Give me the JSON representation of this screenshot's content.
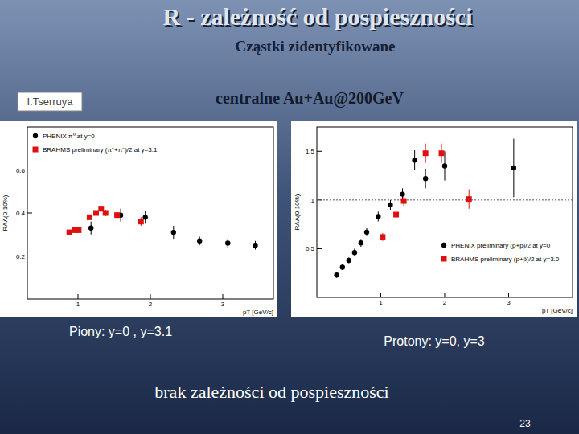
{
  "slide": {
    "title": "R -  zależność od pospieszności",
    "subtitle": "Cząstki zidentyfikowane",
    "author": "I.Tserruya",
    "system": "centralne Au+Au@200GeV",
    "caption_left": "Piony: y=0 ,  y=3.1",
    "caption_right": "Protony: y=0,  y=3",
    "conclusion": "brak zależności od pospieszności",
    "page": "23"
  },
  "chart_data": [
    {
      "type": "scatter",
      "x_label": "pT [GeV/c]",
      "y_label": "RAA(0-10%)",
      "xlim": [
        0.3,
        3.7
      ],
      "xticks": [
        1,
        2,
        3
      ],
      "ylim": [
        0,
        0.8
      ],
      "yticks": [
        0.2,
        0.4,
        0.6
      ],
      "legend": "upper left",
      "series": [
        {
          "name": "PHENIX π⁰ at y=0",
          "color": "#000000",
          "marker": "circle",
          "x": [
            1.18,
            1.59,
            1.93,
            2.32,
            2.68,
            3.07,
            3.45
          ],
          "values": [
            0.33,
            0.39,
            0.38,
            0.31,
            0.27,
            0.26,
            0.25
          ],
          "errors": [
            0.03,
            0.03,
            0.03,
            0.03,
            0.02,
            0.02,
            0.02
          ]
        },
        {
          "name": "BRAHMS preliminary (π⁺+π⁻)/2 at y=3.1",
          "color": "#dd1111",
          "marker": "square",
          "x": [
            0.88,
            0.96,
            1.01,
            1.16,
            1.25,
            1.32,
            1.38,
            1.54,
            1.87
          ],
          "values": [
            0.31,
            0.32,
            0.32,
            0.38,
            0.4,
            0.42,
            0.4,
            0.39,
            0.36
          ],
          "errors": [
            0.01,
            0.01,
            0.01,
            0.01,
            0.01,
            0.015,
            0.015,
            0.015,
            0.02
          ]
        }
      ]
    },
    {
      "type": "scatter",
      "x_label": "pT [GeV/c]",
      "y_label": "RAA(0-10%)",
      "xlim": [
        0,
        4
      ],
      "xticks": [
        1,
        2,
        3
      ],
      "ylim": [
        0,
        1.75
      ],
      "yticks": [
        0.5,
        1,
        1.5
      ],
      "reference_line": 1,
      "legend": "lower right",
      "series": [
        {
          "name": "PHENIX preliminary (p+p̄)/2 at y=0",
          "color": "#000000",
          "marker": "circle",
          "x": [
            0.31,
            0.4,
            0.5,
            0.59,
            0.69,
            0.78,
            0.96,
            1.15,
            1.34,
            1.53,
            1.7,
            2.0,
            3.08
          ],
          "values": [
            0.23,
            0.31,
            0.38,
            0.46,
            0.56,
            0.67,
            0.83,
            0.95,
            1.06,
            1.41,
            1.22,
            1.35,
            1.33
          ],
          "errors": [
            0.03,
            0.03,
            0.03,
            0.04,
            0.04,
            0.04,
            0.05,
            0.05,
            0.06,
            0.1,
            0.1,
            0.15,
            0.3
          ]
        },
        {
          "name": "BRAHMS preliminary (p+p̄)/2 at y=3.0",
          "color": "#dd1111",
          "marker": "square",
          "x": [
            1.03,
            1.24,
            1.36,
            1.7,
            1.95,
            2.38
          ],
          "values": [
            0.62,
            0.85,
            0.99,
            1.48,
            1.48,
            1.01
          ],
          "errors": [
            0.04,
            0.05,
            0.05,
            0.1,
            0.1,
            0.1
          ]
        }
      ]
    }
  ]
}
